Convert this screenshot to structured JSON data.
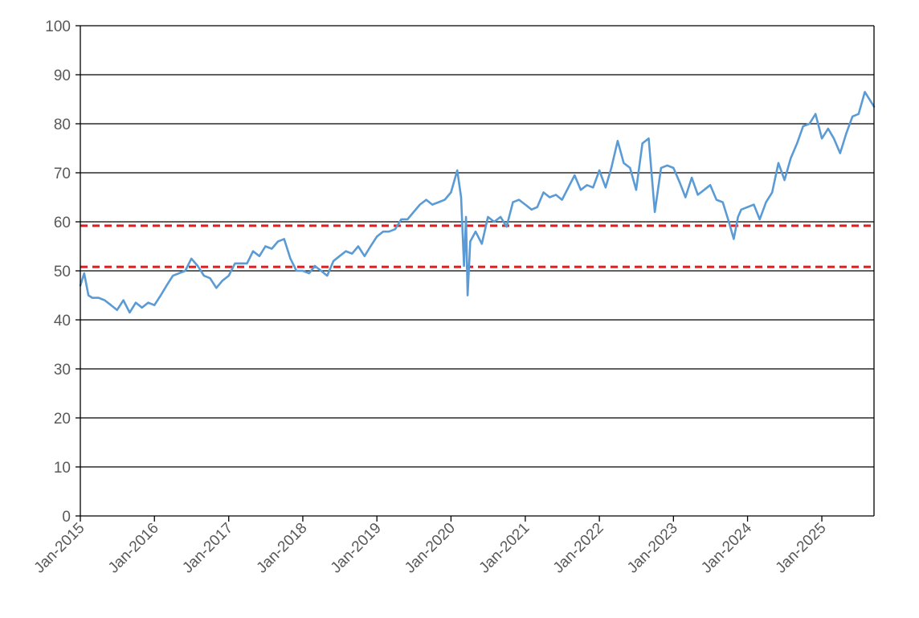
{
  "chart_data": {
    "type": "line",
    "title": "",
    "xlabel": "",
    "ylabel": "",
    "x_range": [
      "2015-01-01",
      "2025-09-15"
    ],
    "ylim": [
      0,
      100
    ],
    "y_ticks": [
      0,
      10,
      20,
      30,
      40,
      50,
      60,
      70,
      80,
      90,
      100
    ],
    "x_tick_labels": [
      "Jan-2015",
      "Jan-2016",
      "Jan-2017",
      "Jan-2018",
      "Jan-2019",
      "Jan-2020",
      "Jan-2021",
      "Jan-2022",
      "Jan-2023",
      "Jan-2024",
      "Jan-2025"
    ],
    "grid": "horizontal",
    "legend": "none",
    "series": [
      {
        "color": "#5B9BD5",
        "points": [
          [
            "2015-01-01",
            47
          ],
          [
            "2015-01-20",
            49.5
          ],
          [
            "2015-02-10",
            45
          ],
          [
            "2015-03-01",
            44.5
          ],
          [
            "2015-04-01",
            44.5
          ],
          [
            "2015-05-01",
            44
          ],
          [
            "2015-06-01",
            43
          ],
          [
            "2015-07-01",
            42
          ],
          [
            "2015-08-01",
            44
          ],
          [
            "2015-09-01",
            41.5
          ],
          [
            "2015-10-01",
            43.5
          ],
          [
            "2015-11-01",
            42.5
          ],
          [
            "2015-12-01",
            43.5
          ],
          [
            "2016-01-01",
            43
          ],
          [
            "2016-02-01",
            45
          ],
          [
            "2016-03-01",
            47
          ],
          [
            "2016-04-01",
            49
          ],
          [
            "2016-05-01",
            49.5
          ],
          [
            "2016-06-01",
            50
          ],
          [
            "2016-07-01",
            52.5
          ],
          [
            "2016-08-01",
            51
          ],
          [
            "2016-09-01",
            49
          ],
          [
            "2016-10-01",
            48.5
          ],
          [
            "2016-11-01",
            46.5
          ],
          [
            "2016-12-01",
            48
          ],
          [
            "2017-01-01",
            49
          ],
          [
            "2017-02-01",
            51.5
          ],
          [
            "2017-03-01",
            51.5
          ],
          [
            "2017-04-01",
            51.5
          ],
          [
            "2017-05-01",
            54
          ],
          [
            "2017-06-01",
            53
          ],
          [
            "2017-07-01",
            55
          ],
          [
            "2017-08-01",
            54.5
          ],
          [
            "2017-09-01",
            56
          ],
          [
            "2017-10-01",
            56.5
          ],
          [
            "2017-11-01",
            52.5
          ],
          [
            "2017-12-01",
            50
          ],
          [
            "2018-01-01",
            50
          ],
          [
            "2018-02-01",
            49.5
          ],
          [
            "2018-03-01",
            51
          ],
          [
            "2018-04-01",
            50
          ],
          [
            "2018-05-01",
            49
          ],
          [
            "2018-06-01",
            52
          ],
          [
            "2018-07-01",
            53
          ],
          [
            "2018-08-01",
            54
          ],
          [
            "2018-09-01",
            53.5
          ],
          [
            "2018-10-01",
            55
          ],
          [
            "2018-11-01",
            53
          ],
          [
            "2018-12-01",
            55
          ],
          [
            "2019-01-01",
            57
          ],
          [
            "2019-02-01",
            58
          ],
          [
            "2019-03-01",
            58
          ],
          [
            "2019-04-01",
            58.5
          ],
          [
            "2019-05-01",
            60.5
          ],
          [
            "2019-06-01",
            60.5
          ],
          [
            "2019-07-01",
            62
          ],
          [
            "2019-08-01",
            63.5
          ],
          [
            "2019-09-01",
            64.5
          ],
          [
            "2019-10-01",
            63.5
          ],
          [
            "2019-11-01",
            64
          ],
          [
            "2019-12-01",
            64.5
          ],
          [
            "2020-01-01",
            66
          ],
          [
            "2020-02-01",
            70.5
          ],
          [
            "2020-02-20",
            65
          ],
          [
            "2020-03-05",
            51
          ],
          [
            "2020-03-15",
            61
          ],
          [
            "2020-03-23",
            45
          ],
          [
            "2020-04-05",
            56
          ],
          [
            "2020-05-01",
            58
          ],
          [
            "2020-06-01",
            55.5
          ],
          [
            "2020-07-01",
            61
          ],
          [
            "2020-08-01",
            60
          ],
          [
            "2020-09-01",
            61
          ],
          [
            "2020-10-01",
            59
          ],
          [
            "2020-11-01",
            64
          ],
          [
            "2020-12-01",
            64.5
          ],
          [
            "2021-01-01",
            63.5
          ],
          [
            "2021-02-01",
            62.5
          ],
          [
            "2021-03-01",
            63
          ],
          [
            "2021-04-01",
            66
          ],
          [
            "2021-05-01",
            65
          ],
          [
            "2021-06-01",
            65.5
          ],
          [
            "2021-07-01",
            64.5
          ],
          [
            "2021-08-01",
            67
          ],
          [
            "2021-09-01",
            69.5
          ],
          [
            "2021-10-01",
            66.5
          ],
          [
            "2021-11-01",
            67.5
          ],
          [
            "2021-12-01",
            67
          ],
          [
            "2022-01-01",
            70.5
          ],
          [
            "2022-02-01",
            67
          ],
          [
            "2022-03-01",
            71
          ],
          [
            "2022-04-01",
            76.5
          ],
          [
            "2022-05-01",
            72
          ],
          [
            "2022-06-01",
            71
          ],
          [
            "2022-07-01",
            66.5
          ],
          [
            "2022-08-01",
            76
          ],
          [
            "2022-09-01",
            77
          ],
          [
            "2022-10-01",
            62
          ],
          [
            "2022-11-01",
            71
          ],
          [
            "2022-12-01",
            71.5
          ],
          [
            "2023-01-01",
            71
          ],
          [
            "2023-02-01",
            68
          ],
          [
            "2023-03-01",
            65
          ],
          [
            "2023-04-01",
            69
          ],
          [
            "2023-05-01",
            65.5
          ],
          [
            "2023-06-01",
            66.5
          ],
          [
            "2023-07-01",
            67.5
          ],
          [
            "2023-08-01",
            64.5
          ],
          [
            "2023-09-01",
            64
          ],
          [
            "2023-10-01",
            60
          ],
          [
            "2023-10-25",
            56.5
          ],
          [
            "2023-11-15",
            61
          ],
          [
            "2023-12-01",
            62.5
          ],
          [
            "2024-01-01",
            63
          ],
          [
            "2024-02-01",
            63.5
          ],
          [
            "2024-03-01",
            60.5
          ],
          [
            "2024-04-01",
            64
          ],
          [
            "2024-05-01",
            66
          ],
          [
            "2024-06-01",
            72
          ],
          [
            "2024-07-01",
            68.5
          ],
          [
            "2024-08-01",
            73
          ],
          [
            "2024-09-01",
            76
          ],
          [
            "2024-10-01",
            79.5
          ],
          [
            "2024-11-01",
            80
          ],
          [
            "2024-12-01",
            82
          ],
          [
            "2025-01-01",
            77
          ],
          [
            "2025-02-01",
            79
          ],
          [
            "2025-03-01",
            77
          ],
          [
            "2025-04-01",
            74
          ],
          [
            "2025-05-01",
            78
          ],
          [
            "2025-06-01",
            81.5
          ],
          [
            "2025-07-01",
            82
          ],
          [
            "2025-08-01",
            86.5
          ],
          [
            "2025-09-15",
            83.5
          ]
        ]
      }
    ],
    "reference_lines": [
      {
        "y": 59.2,
        "color": "#E41A1C",
        "style": "dashed"
      },
      {
        "y": 50.8,
        "color": "#E41A1C",
        "style": "dashed"
      }
    ]
  }
}
